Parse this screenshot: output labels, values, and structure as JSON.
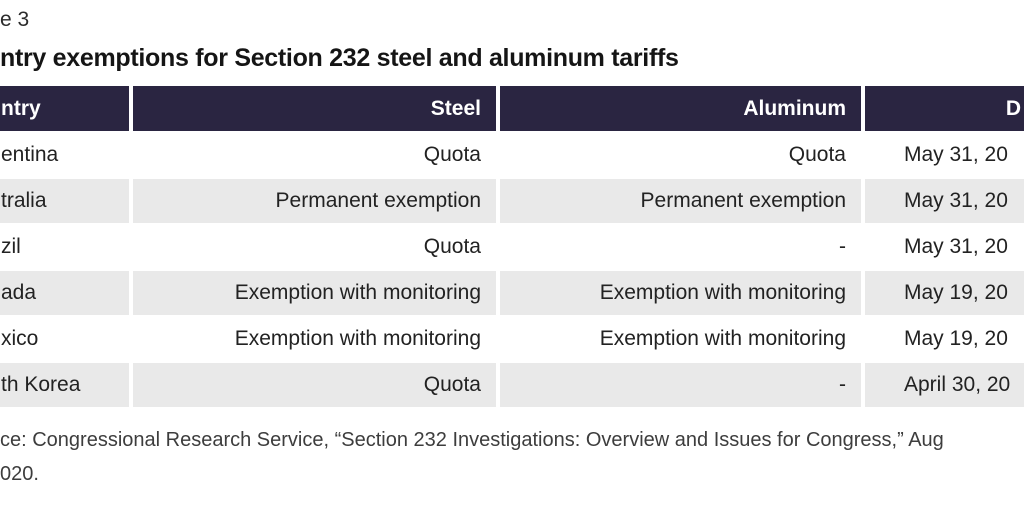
{
  "figure": {
    "label": "e 3",
    "title": "ntry exemptions for Section 232 steel and aluminum tariffs"
  },
  "chart_data": {
    "type": "table",
    "title": "ntry exemptions for Section 232 steel and aluminum tariffs",
    "figure_label": "e 3",
    "columns": [
      "ntry",
      "Steel",
      "Aluminum",
      "D"
    ],
    "rows": [
      [
        "entina",
        "Quota",
        "Quota",
        "May 31, 20"
      ],
      [
        "tralia",
        "Permanent exemption",
        "Permanent exemption",
        "May 31, 20"
      ],
      [
        "zil",
        "Quota",
        "-",
        "May 31, 20"
      ],
      [
        "ada",
        "Exemption with monitoring",
        "Exemption with monitoring",
        "May 19, 20"
      ],
      [
        "xico",
        "Exemption with monitoring",
        "Exemption with monitoring",
        "May 19, 20"
      ],
      [
        "th Korea",
        "Quota",
        "-",
        "April 30, 20"
      ]
    ],
    "layout_hints": {
      "header_alignments": [
        "left",
        "right",
        "right",
        "right"
      ],
      "body_alignments": [
        "left",
        "right",
        "right",
        "left"
      ],
      "zebra_striping": true,
      "cropped_edges": "left and right edges of figure are cut off"
    }
  },
  "source": {
    "line1": "ce: Congressional Research Service, “Section 232 Investigations: Overview and Issues for Congress,” Aug",
    "line2": "020."
  },
  "colors": {
    "header_bg": "#2a2541",
    "header_text": "#ffffff",
    "stripe": "#e9e9e9",
    "body_text": "#222222",
    "title_text": "#151515",
    "source_text": "#3d3d3d",
    "background": "#ffffff"
  }
}
